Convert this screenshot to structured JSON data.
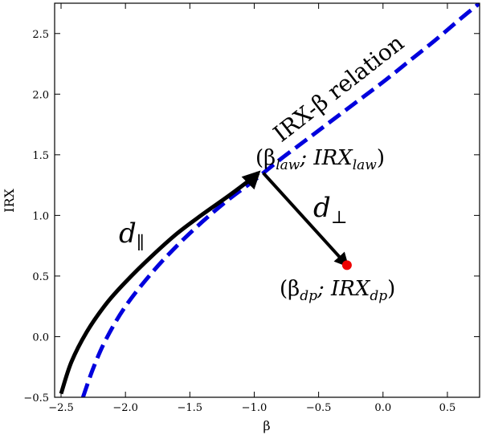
{
  "chart_data": {
    "type": "line",
    "title": "",
    "xlabel": "β",
    "ylabel": "IRX",
    "xlim": [
      -2.55,
      0.75
    ],
    "ylim": [
      -0.5,
      2.75
    ],
    "x_ticks": [
      -2.5,
      -2.0,
      -1.5,
      -1.0,
      -0.5,
      0.0,
      0.5
    ],
    "x_tick_labels": [
      "−2.5",
      "−2.0",
      "−1.5",
      "−1.0",
      "−0.5",
      "0.0",
      "0.5"
    ],
    "y_ticks": [
      -0.5,
      0.0,
      0.5,
      1.0,
      1.5,
      2.0,
      2.5
    ],
    "y_tick_labels": [
      "−0.5",
      "0.0",
      "0.5",
      "1.0",
      "1.5",
      "2.0",
      "2.5"
    ],
    "grid": false,
    "series": [
      {
        "name": "IRX-β relation",
        "style": "dashed",
        "color": "#0000dd",
        "points": [
          [
            -2.33,
            -0.5
          ],
          [
            -2.25,
            -0.26
          ],
          [
            -2.15,
            -0.02
          ],
          [
            -2.0,
            0.25
          ],
          [
            -1.8,
            0.52
          ],
          [
            -1.6,
            0.75
          ],
          [
            -1.4,
            0.95
          ],
          [
            -1.2,
            1.13
          ],
          [
            -1.0,
            1.29
          ],
          [
            -0.8,
            1.46
          ],
          [
            -0.6,
            1.62
          ],
          [
            -0.4,
            1.78
          ],
          [
            -0.2,
            1.94
          ],
          [
            0.0,
            2.1
          ],
          [
            0.2,
            2.27
          ],
          [
            0.4,
            2.44
          ],
          [
            0.6,
            2.62
          ],
          [
            0.75,
            2.75
          ]
        ]
      },
      {
        "name": "d_parallel path",
        "style": "solid",
        "color": "#000000",
        "points": [
          [
            -2.5,
            -0.47
          ],
          [
            -2.42,
            -0.21
          ],
          [
            -2.3,
            0.04
          ],
          [
            -2.15,
            0.27
          ],
          [
            -2.0,
            0.45
          ],
          [
            -1.8,
            0.66
          ],
          [
            -1.6,
            0.85
          ],
          [
            -1.4,
            1.01
          ],
          [
            -1.2,
            1.16
          ],
          [
            -1.0,
            1.32
          ],
          [
            -0.97,
            1.35
          ]
        ]
      }
    ],
    "points": [
      {
        "label": "law",
        "x": -0.93,
        "y": 1.35
      },
      {
        "label": "dp",
        "x": -0.28,
        "y": 0.59,
        "color": "#ee0000"
      }
    ],
    "annotations": {
      "relation_text": "IRX-β relation",
      "d_parallel": {
        "base": "d",
        "sub": "∥"
      },
      "d_perp": {
        "base": "d",
        "sub": "⊥"
      },
      "law_point": {
        "open": "(β",
        "sub1": "law",
        "mid": "; IRX",
        "sub2": "law",
        "close": ")"
      },
      "dp_point": {
        "open": "(β",
        "sub1": "dp",
        "mid": "; IRX",
        "sub2": "dp",
        "close": ")"
      }
    }
  }
}
